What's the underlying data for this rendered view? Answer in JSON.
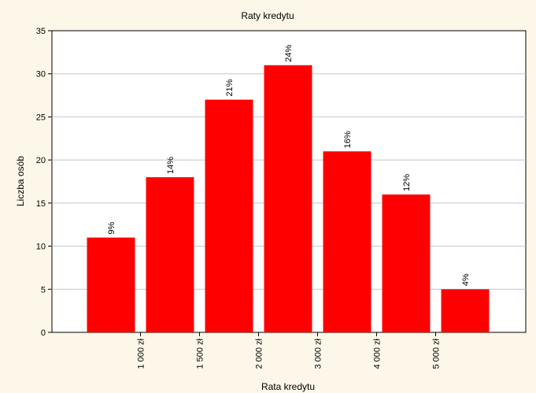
{
  "chart_data": {
    "type": "bar",
    "title": "Raty kredytu",
    "xlabel": "Rata kredytu",
    "ylabel": "Liczba osób",
    "ylim": [
      0,
      35
    ],
    "yticks": [
      0,
      5,
      10,
      15,
      20,
      25,
      30,
      35
    ],
    "grid": true,
    "values": [
      11,
      18,
      27,
      31,
      21,
      16,
      5
    ],
    "data_labels": [
      "9%",
      "14%",
      "21%",
      "24%",
      "16%",
      "12%",
      "4%"
    ],
    "x_tick_labels": [
      "1 000 zł",
      "1 500 zł",
      "2 000 zł",
      "3 000 zł",
      "4 000 zł",
      "5 000 zł"
    ],
    "colors": {
      "bar": "#ff0000",
      "background": "#fdf7e9",
      "grid": "#bfc7d3"
    }
  }
}
